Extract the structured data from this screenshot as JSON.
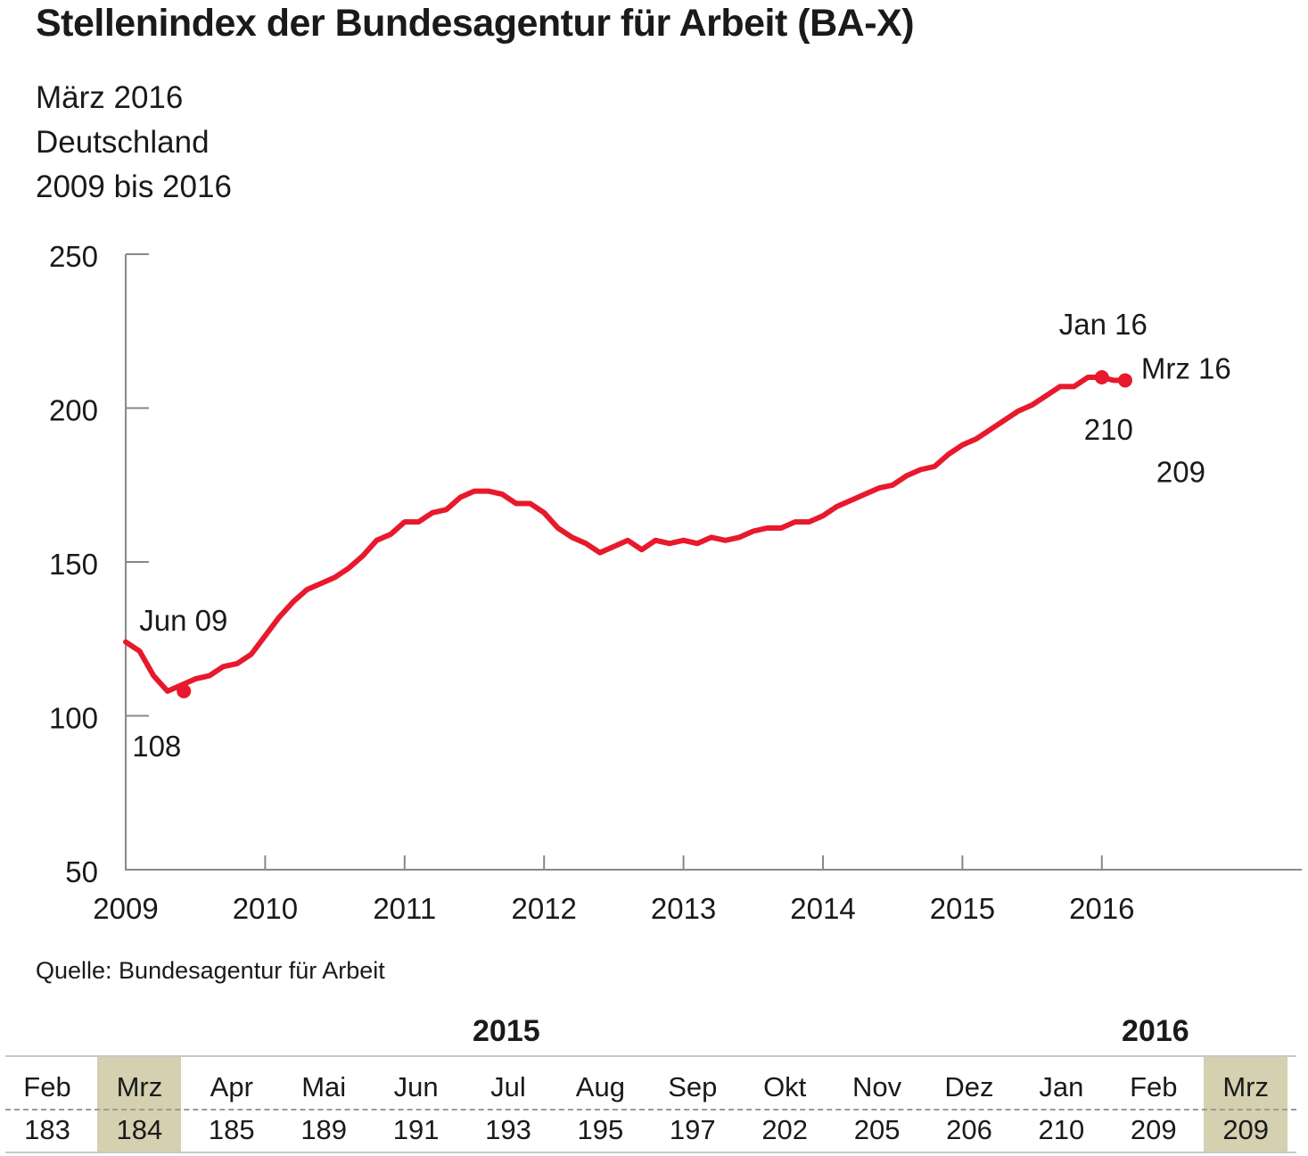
{
  "title": "Stellenindex der Bundesagentur für Arbeit (BA-X)",
  "subtitle": [
    "März 2016",
    "Deutschland",
    "2009 bis 2016"
  ],
  "source": "Quelle: Bundesagentur für Arbeit",
  "colors": {
    "line": "#e8192c",
    "axis": "#888888",
    "highlight": "#d4d0b0",
    "text": "#1a1a1a"
  },
  "chart_data": {
    "type": "line",
    "ylim": [
      50,
      250
    ],
    "yticks": [
      50,
      100,
      150,
      200,
      250
    ],
    "xticks": [
      "2009",
      "2010",
      "2011",
      "2012",
      "2013",
      "2014",
      "2015",
      "2016"
    ],
    "xlim": [
      2009.0,
      2016.625
    ],
    "grid": false,
    "series": [
      {
        "x": [
          2009.0,
          2009.1,
          2009.2,
          2009.3,
          2009.4,
          2009.5,
          2009.6,
          2009.7,
          2009.8,
          2009.9,
          2010.0,
          2010.1,
          2010.2,
          2010.3,
          2010.4,
          2010.5,
          2010.6,
          2010.7,
          2010.8,
          2010.9,
          2011.0,
          2011.1,
          2011.2,
          2011.3,
          2011.4,
          2011.5,
          2011.6,
          2011.7,
          2011.8,
          2011.9,
          2012.0,
          2012.1,
          2012.2,
          2012.3,
          2012.4,
          2012.5,
          2012.6,
          2012.7,
          2012.8,
          2012.9,
          2013.0,
          2013.1,
          2013.2,
          2013.3,
          2013.4,
          2013.5,
          2013.6,
          2013.7,
          2013.8,
          2013.9,
          2014.0,
          2014.1,
          2014.2,
          2014.3,
          2014.4,
          2014.5,
          2014.6,
          2014.7,
          2014.8,
          2014.9,
          2015.0,
          2015.1,
          2015.2,
          2015.3,
          2015.4,
          2015.5,
          2015.6,
          2015.7,
          2015.8,
          2015.9,
          2016.0,
          2016.083,
          2016.167
        ],
        "values": [
          124,
          121,
          113,
          108,
          110,
          112,
          113,
          116,
          117,
          120,
          126,
          132,
          137,
          141,
          143,
          145,
          148,
          152,
          157,
          159,
          163,
          163,
          166,
          167,
          171,
          173,
          173,
          172,
          169,
          169,
          166,
          161,
          158,
          156,
          153,
          155,
          157,
          154,
          157,
          156,
          157,
          156,
          158,
          157,
          158,
          160,
          161,
          161,
          163,
          163,
          165,
          168,
          170,
          172,
          174,
          175,
          178,
          180,
          181,
          185,
          188,
          190,
          193,
          196,
          199,
          201,
          204,
          207,
          207,
          210,
          210,
          209,
          209
        ]
      }
    ],
    "markers": [
      {
        "x": 2009.417,
        "value": 108,
        "label": "Jun 09",
        "value_label": "108"
      },
      {
        "x": 2016.0,
        "value": 210,
        "label": "Jan 16",
        "value_label": "210"
      },
      {
        "x": 2016.167,
        "value": 209,
        "label": "Mrz 16",
        "value_label": "209"
      }
    ]
  },
  "table": {
    "years": [
      {
        "label": "2015"
      },
      {
        "label": "2016"
      }
    ],
    "columns": [
      {
        "month": "Feb",
        "value": "183",
        "highlight": false
      },
      {
        "month": "Mrz",
        "value": "184",
        "highlight": true
      },
      {
        "month": "Apr",
        "value": "185",
        "highlight": false
      },
      {
        "month": "Mai",
        "value": "189",
        "highlight": false
      },
      {
        "month": "Jun",
        "value": "191",
        "highlight": false
      },
      {
        "month": "Jul",
        "value": "193",
        "highlight": false
      },
      {
        "month": "Aug",
        "value": "195",
        "highlight": false
      },
      {
        "month": "Sep",
        "value": "197",
        "highlight": false
      },
      {
        "month": "Okt",
        "value": "202",
        "highlight": false
      },
      {
        "month": "Nov",
        "value": "205",
        "highlight": false
      },
      {
        "month": "Dez",
        "value": "206",
        "highlight": false
      },
      {
        "month": "Jan",
        "value": "210",
        "highlight": false
      },
      {
        "month": "Feb",
        "value": "209",
        "highlight": false
      },
      {
        "month": "Mrz",
        "value": "209",
        "highlight": true
      }
    ]
  }
}
